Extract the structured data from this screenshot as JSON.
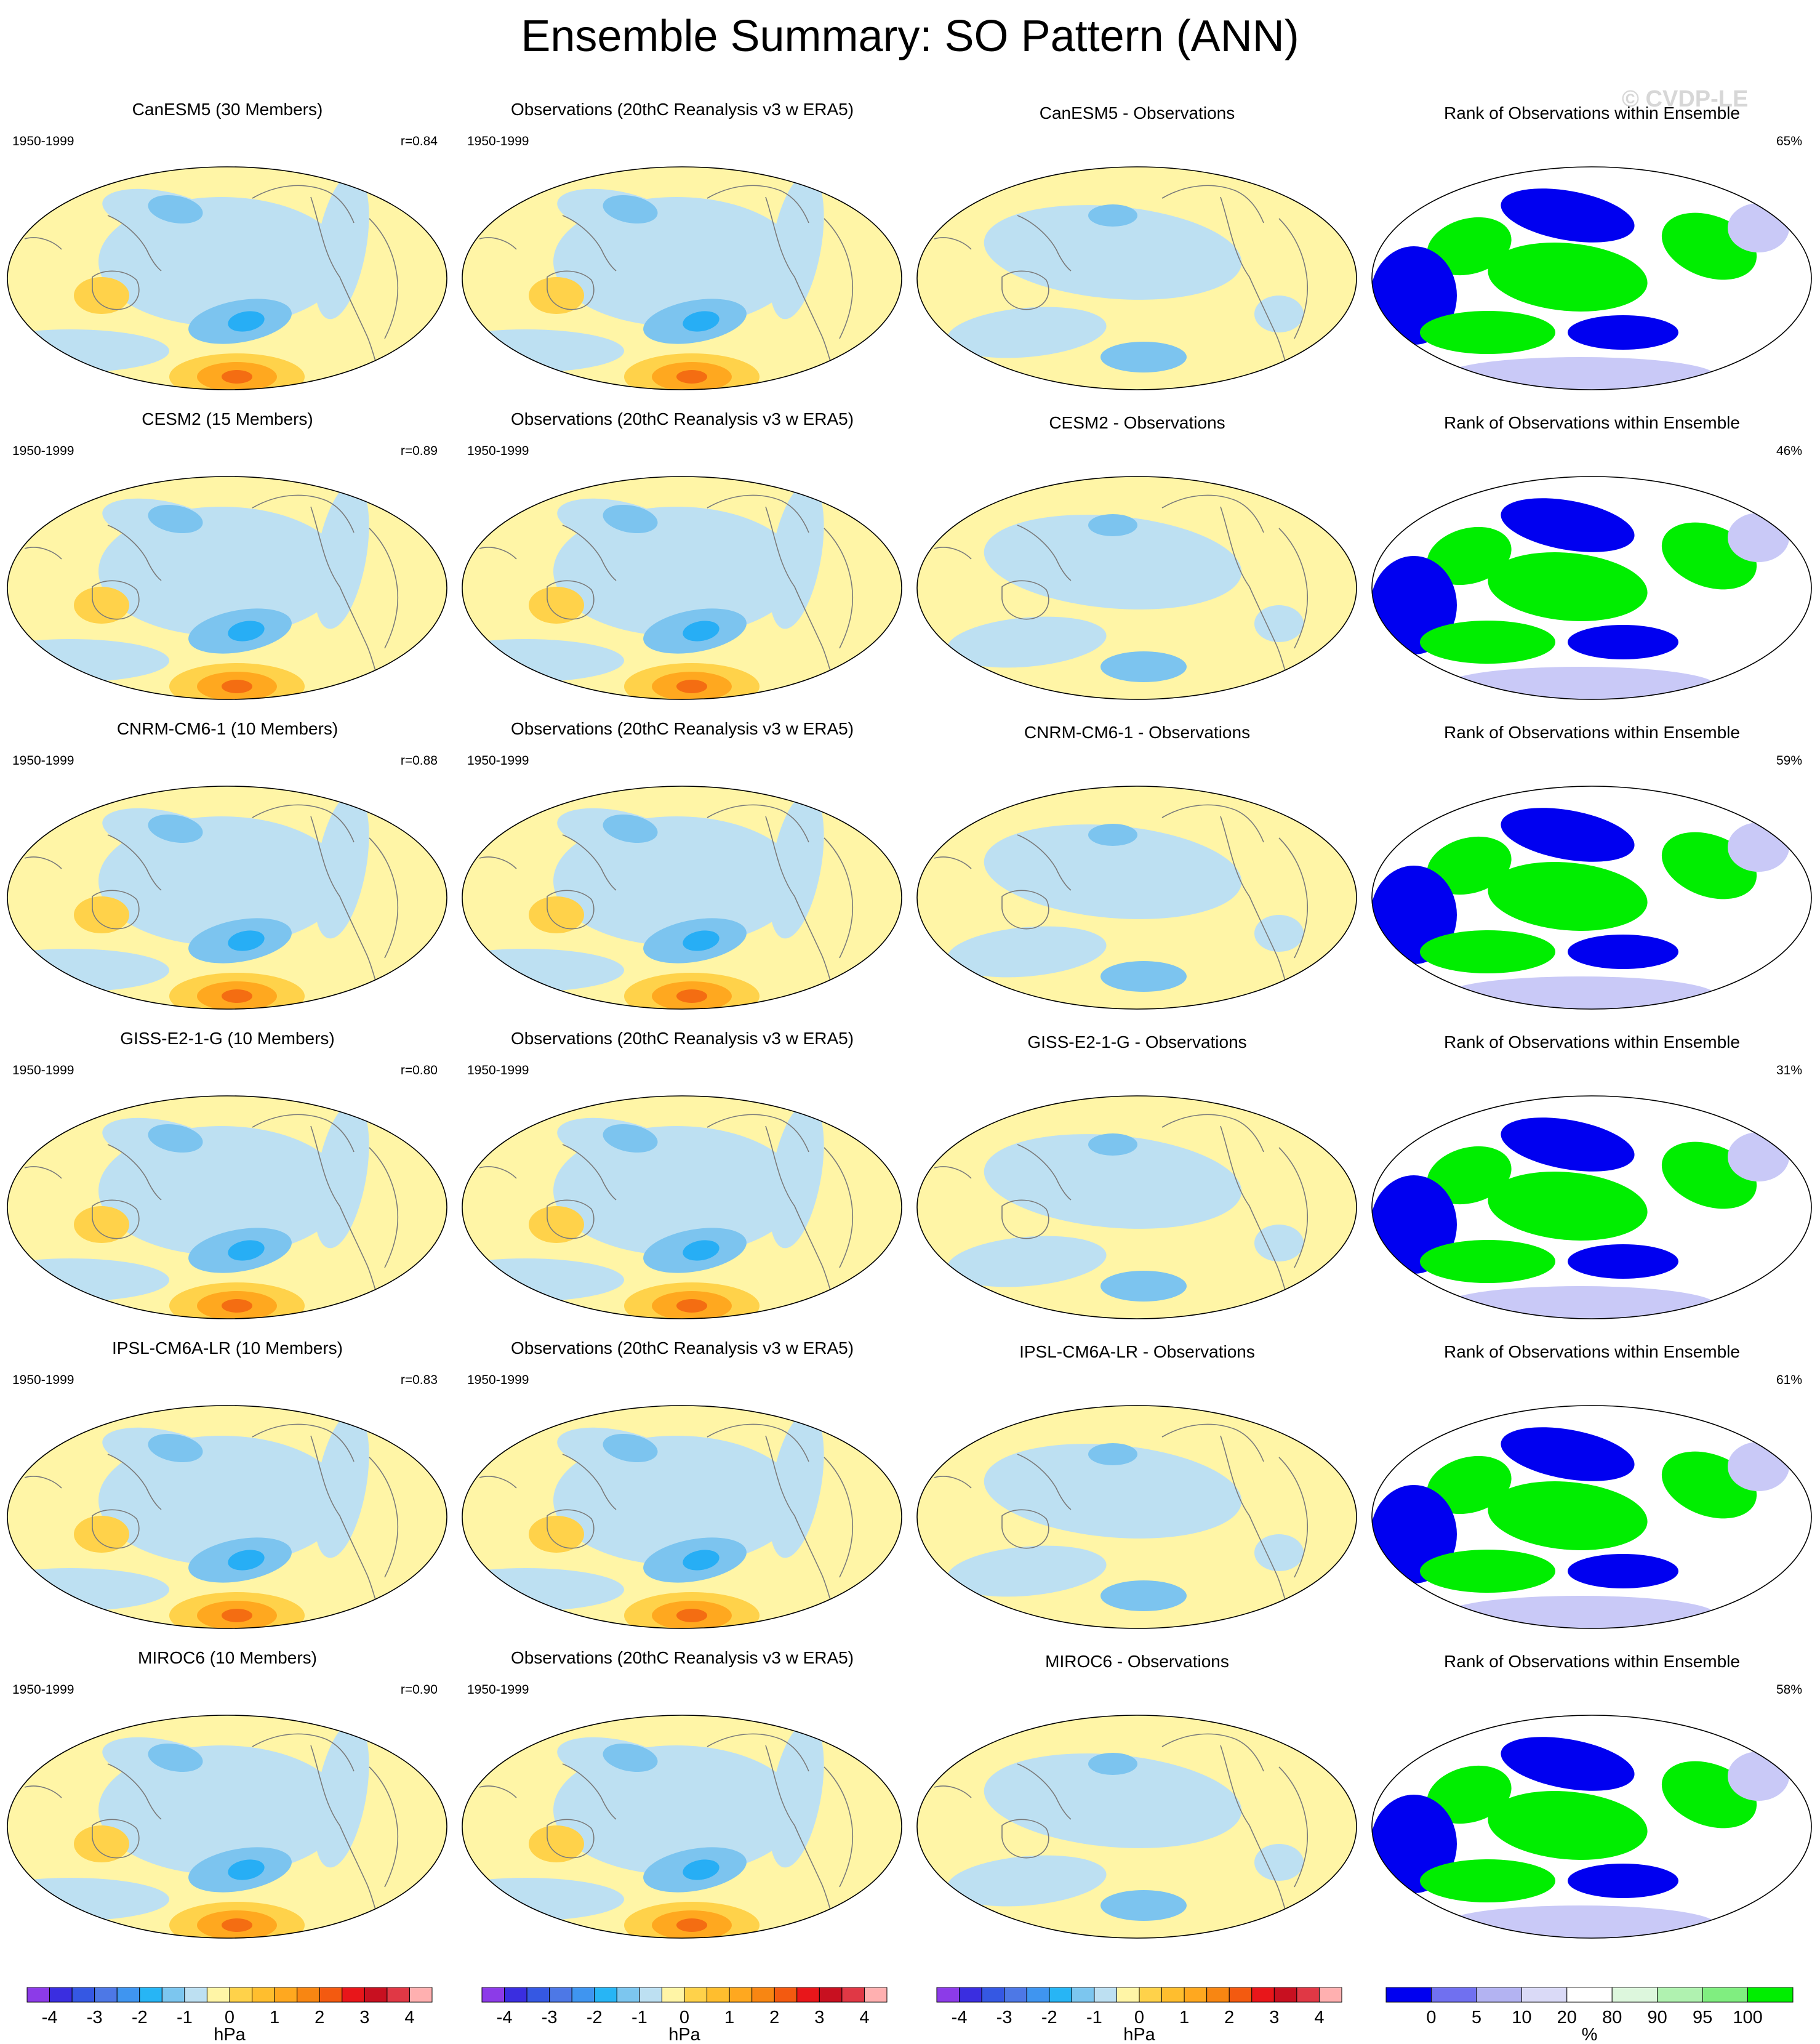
{
  "title": "Ensemble Summary: SO Pattern (ANN)",
  "watermark": "© CVDP-LE",
  "period": "1950-1999",
  "obs_title": "Observations (20thC Reanalysis v3 w ERA5)",
  "rank_title": "Rank of Observations within Ensemble",
  "colors": {
    "pos1": "#fff5a6",
    "pos2": "#ffd24a",
    "pos3": "#ffa81f",
    "pos4": "#f46d12",
    "neg1": "#bde0f2",
    "neg2": "#7cc4ef",
    "neg3": "#27aef5",
    "rank_low": "#0000f0",
    "rank_mid": "#c9c9f7",
    "rank_high": "#00ee00"
  },
  "rows": [
    {
      "model_title": "CanESM5 (30 Members)",
      "r": "r=0.84",
      "diff_title": "CanESM5 - Observations",
      "rank_pct": "65%"
    },
    {
      "model_title": "CESM2 (15 Members)",
      "r": "r=0.89",
      "diff_title": "CESM2 - Observations",
      "rank_pct": "46%"
    },
    {
      "model_title": "CNRM-CM6-1 (10 Members)",
      "r": "r=0.88",
      "diff_title": "CNRM-CM6-1 - Observations",
      "rank_pct": "59%"
    },
    {
      "model_title": "GISS-E2-1-G (10 Members)",
      "r": "r=0.80",
      "diff_title": "GISS-E2-1-G - Observations",
      "rank_pct": "31%"
    },
    {
      "model_title": "IPSL-CM6A-LR (10 Members)",
      "r": "r=0.83",
      "diff_title": "IPSL-CM6A-LR - Observations",
      "rank_pct": "61%"
    },
    {
      "model_title": "MIROC6 (10 Members)",
      "r": "r=0.90",
      "diff_title": "MIROC6 - Observations",
      "rank_pct": "58%"
    }
  ],
  "colorbar_hpa": {
    "colors": [
      "#8c3be8",
      "#3a2ee0",
      "#3558e3",
      "#4d78e6",
      "#3f95f0",
      "#27b5f5",
      "#7cc6ef",
      "#bde0f2",
      "#fff5a6",
      "#ffd24a",
      "#ffbe2e",
      "#ffa81f",
      "#f88612",
      "#f35a10",
      "#e8161a",
      "#c81020",
      "#e03845",
      "#ffb0b0"
    ],
    "labels": [
      "-4",
      "-3",
      "-2",
      "-1",
      "0",
      "1",
      "2",
      "3",
      "4"
    ],
    "unit": "hPa"
  },
  "colorbar_rank": {
    "colors": [
      "#0000f0",
      "#7070f0",
      "#b3b3f2",
      "#dadaf7",
      "#ffffff",
      "#ddf7dd",
      "#b0f2b0",
      "#80ee80",
      "#00ee00"
    ],
    "labels": [
      "0",
      "5",
      "10",
      "20",
      "80",
      "90",
      "95",
      "100"
    ],
    "unit": "%"
  }
}
